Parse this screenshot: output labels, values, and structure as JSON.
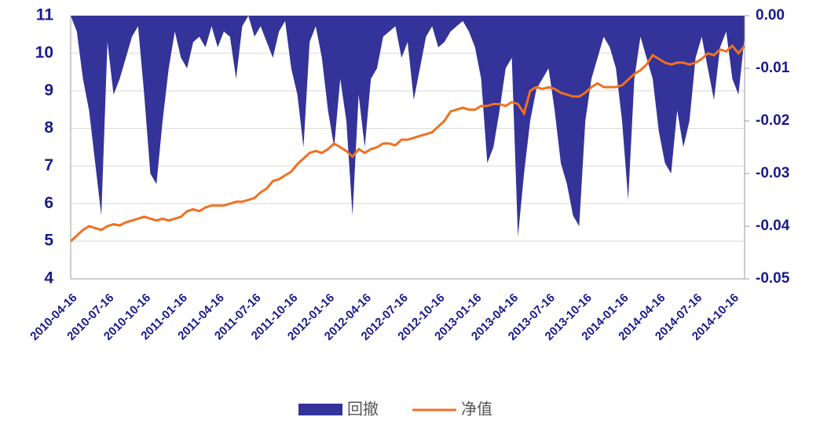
{
  "chart_data": {
    "type": "line",
    "categories": [
      "2010-04-16",
      null,
      null,
      null,
      null,
      null,
      "2010-07-16",
      null,
      null,
      null,
      null,
      null,
      "2010-10-16",
      null,
      null,
      null,
      null,
      null,
      "2011-01-16",
      null,
      null,
      null,
      null,
      null,
      "2011-04-16",
      null,
      null,
      null,
      null,
      null,
      "2011-07-16",
      null,
      null,
      null,
      null,
      null,
      "2011-10-16",
      null,
      null,
      null,
      null,
      null,
      "2012-01-16",
      null,
      null,
      null,
      null,
      null,
      "2012-04-16",
      null,
      null,
      null,
      null,
      null,
      "2012-07-16",
      null,
      null,
      null,
      null,
      null,
      "2012-10-16",
      null,
      null,
      null,
      null,
      null,
      "2013-01-16",
      null,
      null,
      null,
      null,
      null,
      "2013-04-16",
      null,
      null,
      null,
      null,
      null,
      "2013-07-16",
      null,
      null,
      null,
      null,
      null,
      "2013-10-16",
      null,
      null,
      null,
      null,
      null,
      "2014-01-16",
      null,
      null,
      null,
      null,
      null,
      "2014-04-16",
      null,
      null,
      null,
      null,
      null,
      "2014-07-16",
      null,
      null,
      null,
      null,
      null,
      "2014-10-16",
      null,
      null
    ],
    "series": [
      {
        "name": "回撤",
        "type": "area",
        "axis": "y2",
        "color": "#333399",
        "values": [
          0,
          -0.003,
          -0.012,
          -0.018,
          -0.028,
          -0.038,
          -0.005,
          -0.015,
          -0.012,
          -0.008,
          -0.004,
          -0.002,
          -0.015,
          -0.03,
          -0.032,
          -0.02,
          -0.01,
          -0.003,
          -0.008,
          -0.01,
          -0.005,
          -0.004,
          -0.006,
          -0.002,
          -0.006,
          -0.003,
          -0.004,
          -0.012,
          -0.002,
          0,
          -0.004,
          -0.002,
          -0.005,
          -0.008,
          -0.003,
          -0.001,
          -0.01,
          -0.015,
          -0.025,
          -0.005,
          -0.002,
          -0.008,
          -0.018,
          -0.025,
          -0.012,
          -0.02,
          -0.038,
          -0.015,
          -0.025,
          -0.012,
          -0.01,
          -0.004,
          -0.003,
          -0.002,
          -0.008,
          -0.005,
          -0.016,
          -0.01,
          -0.004,
          -0.002,
          -0.006,
          -0.005,
          -0.003,
          -0.002,
          -0.001,
          -0.003,
          -0.006,
          -0.012,
          -0.028,
          -0.025,
          -0.018,
          -0.01,
          -0.008,
          -0.042,
          -0.03,
          -0.02,
          -0.014,
          -0.012,
          -0.01,
          -0.018,
          -0.028,
          -0.032,
          -0.038,
          -0.04,
          -0.02,
          -0.012,
          -0.008,
          -0.004,
          -0.006,
          -0.01,
          -0.02,
          -0.035,
          -0.012,
          -0.004,
          -0.008,
          -0.012,
          -0.022,
          -0.028,
          -0.03,
          -0.018,
          -0.025,
          -0.02,
          -0.008,
          -0.004,
          -0.01,
          -0.016,
          -0.006,
          -0.003,
          -0.012,
          -0.015,
          -0.004
        ]
      },
      {
        "name": "净值",
        "type": "line",
        "color": "#f07020",
        "values": [
          5.0,
          5.15,
          5.3,
          5.4,
          5.35,
          5.3,
          5.4,
          5.45,
          5.42,
          5.5,
          5.55,
          5.6,
          5.65,
          5.6,
          5.55,
          5.6,
          5.55,
          5.6,
          5.65,
          5.8,
          5.85,
          5.8,
          5.9,
          5.95,
          5.95,
          5.95,
          6.0,
          6.05,
          6.05,
          6.1,
          6.15,
          6.3,
          6.4,
          6.6,
          6.65,
          6.75,
          6.85,
          7.05,
          7.2,
          7.35,
          7.4,
          7.35,
          7.45,
          7.6,
          7.5,
          7.4,
          7.25,
          7.45,
          7.35,
          7.45,
          7.5,
          7.6,
          7.6,
          7.55,
          7.7,
          7.7,
          7.75,
          7.8,
          7.85,
          7.9,
          8.05,
          8.2,
          8.45,
          8.5,
          8.55,
          8.5,
          8.5,
          8.6,
          8.6,
          8.65,
          8.65,
          8.6,
          8.7,
          8.65,
          8.4,
          9.0,
          9.1,
          9.05,
          9.1,
          9.05,
          8.95,
          8.9,
          8.85,
          8.85,
          8.95,
          9.1,
          9.2,
          9.1,
          9.1,
          9.1,
          9.15,
          9.3,
          9.45,
          9.55,
          9.7,
          9.95,
          9.85,
          9.75,
          9.7,
          9.75,
          9.75,
          9.7,
          9.75,
          9.85,
          10.0,
          9.95,
          10.1,
          10.05,
          10.2,
          10.0,
          10.2
        ]
      }
    ],
    "ylim": [
      4,
      11
    ],
    "yticks": [
      4,
      5,
      6,
      7,
      8,
      9,
      10,
      11
    ],
    "y2lim": [
      -0.05,
      0
    ],
    "y2ticks": [
      {
        "value": 0,
        "label": "0.00"
      },
      -0.01,
      -0.02,
      -0.03,
      -0.04,
      -0.05
    ],
    "grid": true,
    "legend": "bottom"
  }
}
